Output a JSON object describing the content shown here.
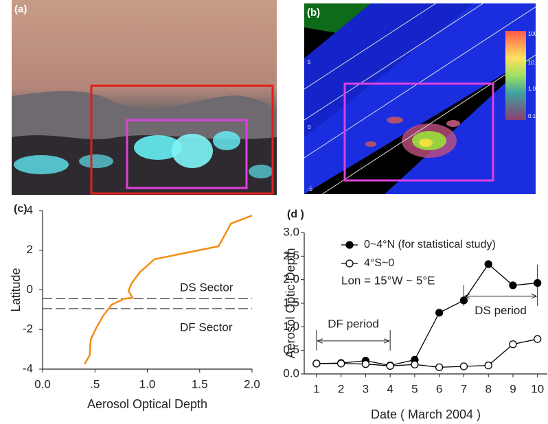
{
  "images": [
    {
      "label": "(a)"
    },
    {
      "label": "(b)",
      "lat_labels": [
        "5",
        "0",
        "-5"
      ],
      "colorbar_labels": [
        "100.000",
        "10.0000",
        "1.00000",
        "0.100000"
      ]
    }
  ],
  "chart_data": [
    {
      "type": "line",
      "panel_label": "(c)",
      "xlabel": "Aerosol Optical Depth",
      "ylabel": "Latitude",
      "x": [
        0.4,
        0.45,
        0.46,
        0.51,
        0.58,
        0.66,
        0.78,
        0.86,
        0.82,
        0.85,
        0.93,
        1.07,
        1.68,
        1.8,
        2.0
      ],
      "series": [
        {
          "color": "#f28c14",
          "values": [
            -3.75,
            -3.3,
            -2.5,
            -1.95,
            -1.3,
            -0.75,
            -0.45,
            -0.4,
            -0.05,
            0.33,
            0.9,
            1.55,
            2.2,
            3.35,
            3.75
          ]
        }
      ],
      "xlim": [
        0,
        2
      ],
      "ylim": [
        -4,
        4
      ],
      "xticks": [
        {
          "value": 0,
          "label": "0.0"
        },
        {
          "value": 0.5,
          "label": ".5"
        },
        {
          "value": 1,
          "label": "1.0"
        },
        1.5,
        {
          "value": 2,
          "label": "2.0"
        }
      ],
      "yticks": [
        4,
        2,
        0,
        -2,
        -4
      ],
      "hlines": [
        -0.45,
        -0.95
      ],
      "annotations": [
        "DS Sector",
        "DF Sector"
      ]
    },
    {
      "type": "line",
      "panel_label": "(d )",
      "xlabel": "Date ( March 2004 )",
      "ylabel": "Aerosol Optic Depth",
      "x": [
        1,
        2,
        3,
        4,
        5,
        6,
        7,
        8,
        9,
        10
      ],
      "series": [
        {
          "name": "0~4°N (for statistical study)",
          "color": "#000000",
          "marker_fill": "#000000",
          "values": [
            0.22,
            0.23,
            0.28,
            0.18,
            0.3,
            1.3,
            1.56,
            2.33,
            1.88,
            1.93
          ]
        },
        {
          "name": "4°S~0",
          "color": "#000000",
          "marker_fill": "#ffffff",
          "values": [
            0.22,
            0.22,
            0.21,
            0.17,
            0.2,
            0.14,
            0.16,
            0.18,
            0.63,
            0.74
          ]
        }
      ],
      "xlim": [
        0.5,
        10.4
      ],
      "ylim": [
        0,
        3
      ],
      "xticks": [
        1,
        2,
        3,
        4,
        5,
        6,
        7,
        8,
        9,
        10
      ],
      "yticks": [
        {
          "value": 0,
          "label": "0.0"
        },
        0.5,
        {
          "value": 1,
          "label": "1.0"
        },
        1.5,
        {
          "value": 2,
          "label": "2.0"
        },
        2.5,
        {
          "value": 3,
          "label": "3.0"
        }
      ],
      "legend": "upper left",
      "annotations": [
        "Lon = 15°W ~ 5°E"
      ],
      "periods": [
        {
          "label": "DF period",
          "start": 1,
          "end": 4,
          "y": 0.7
        },
        {
          "label": "DS period",
          "start": 7,
          "end": 10,
          "y": 1.65
        }
      ]
    }
  ]
}
